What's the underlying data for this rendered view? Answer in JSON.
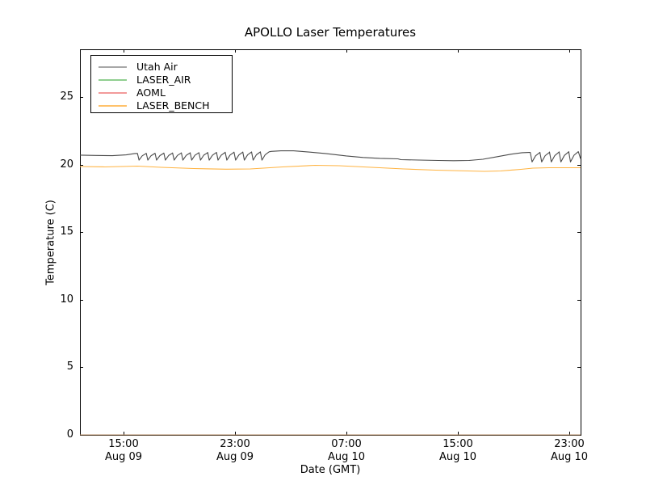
{
  "chart_data": {
    "type": "line",
    "title": "APOLLO Laser Temperatures",
    "xlabel": "Date (GMT)",
    "ylabel": "Temperature (C)",
    "grid": false,
    "legend_position": "upper left",
    "x_unit": "hours since Aug 09 00:00 GMT",
    "xlim": [
      11.87,
      47.81
    ],
    "ylim": [
      0,
      28.56
    ],
    "y_ticks": [
      0,
      5,
      10,
      15,
      20,
      25
    ],
    "x_ticks": [
      {
        "hour": 15,
        "time": "15:00",
        "date": "Aug 09"
      },
      {
        "hour": 23,
        "time": "23:00",
        "date": "Aug 09"
      },
      {
        "hour": 31,
        "time": "07:00",
        "date": "Aug 10"
      },
      {
        "hour": 39,
        "time": "15:00",
        "date": "Aug 10"
      },
      {
        "hour": 47,
        "time": "23:00",
        "date": "Aug 10"
      }
    ],
    "series": [
      {
        "name": "Utah Air",
        "legend_color": "#a8a8a8",
        "line_color": "#4a4a4a",
        "line_opacity": 1,
        "points": [
          [
            11.87,
            20.72
          ],
          [
            13.0,
            20.7
          ],
          [
            14.2,
            20.68
          ],
          [
            15.2,
            20.74
          ],
          [
            15.8,
            20.84
          ],
          [
            25.6,
            21.0
          ],
          [
            26.3,
            21.04
          ],
          [
            27.2,
            21.04
          ],
          [
            28.2,
            20.96
          ],
          [
            29.5,
            20.84
          ],
          [
            31.0,
            20.66
          ],
          [
            32.2,
            20.55
          ],
          [
            33.4,
            20.48
          ],
          [
            34.7,
            20.45
          ],
          [
            34.9,
            20.39
          ],
          [
            36.2,
            20.36
          ],
          [
            37.6,
            20.33
          ],
          [
            38.7,
            20.31
          ],
          [
            39.8,
            20.33
          ],
          [
            40.8,
            20.42
          ],
          [
            41.8,
            20.6
          ],
          [
            42.8,
            20.79
          ],
          [
            43.6,
            20.9
          ],
          [
            44.1,
            20.92
          ],
          [
            47.81,
            20.45
          ]
        ],
        "sawtooth_groups": [
          {
            "from": 16.0,
            "to": 25.45,
            "teeth": 15,
            "top_start": 20.85,
            "top_end": 20.97,
            "dip": 20.35
          },
          {
            "from": 44.2,
            "to": 47.65,
            "teeth": 5,
            "top_start": 20.92,
            "top_end": 20.98,
            "dip": 20.22
          }
        ]
      },
      {
        "name": "LASER_AIR",
        "legend_color": "#90cf90",
        "line_color": "#90cf90",
        "line_opacity": 1,
        "points": [
          [
            11.87,
            0
          ],
          [
            47.81,
            0
          ]
        ],
        "sawtooth_groups": []
      },
      {
        "name": "AOML",
        "legend_color": "#f29a9a",
        "line_color": "#c0503a",
        "line_opacity": 0.6,
        "points": [
          [
            11.87,
            0
          ],
          [
            47.81,
            0
          ]
        ],
        "sawtooth_groups": []
      },
      {
        "name": "LASER_BENCH",
        "legend_color": "#ffc26b",
        "line_color": "#ffb341",
        "line_opacity": 1,
        "points": [
          [
            11.87,
            19.88
          ],
          [
            13.67,
            19.85
          ],
          [
            15.99,
            19.91
          ],
          [
            17.72,
            19.82
          ],
          [
            20.04,
            19.73
          ],
          [
            22.36,
            19.68
          ],
          [
            24.1,
            19.7
          ],
          [
            26.42,
            19.85
          ],
          [
            28.74,
            19.97
          ],
          [
            30.48,
            19.94
          ],
          [
            32.8,
            19.82
          ],
          [
            35.12,
            19.7
          ],
          [
            37.43,
            19.61
          ],
          [
            39.75,
            19.55
          ],
          [
            40.91,
            19.52
          ],
          [
            42.07,
            19.55
          ],
          [
            43.52,
            19.67
          ],
          [
            44.39,
            19.76
          ],
          [
            45.55,
            19.79
          ],
          [
            47.81,
            19.79
          ]
        ],
        "sawtooth_groups": []
      }
    ]
  }
}
